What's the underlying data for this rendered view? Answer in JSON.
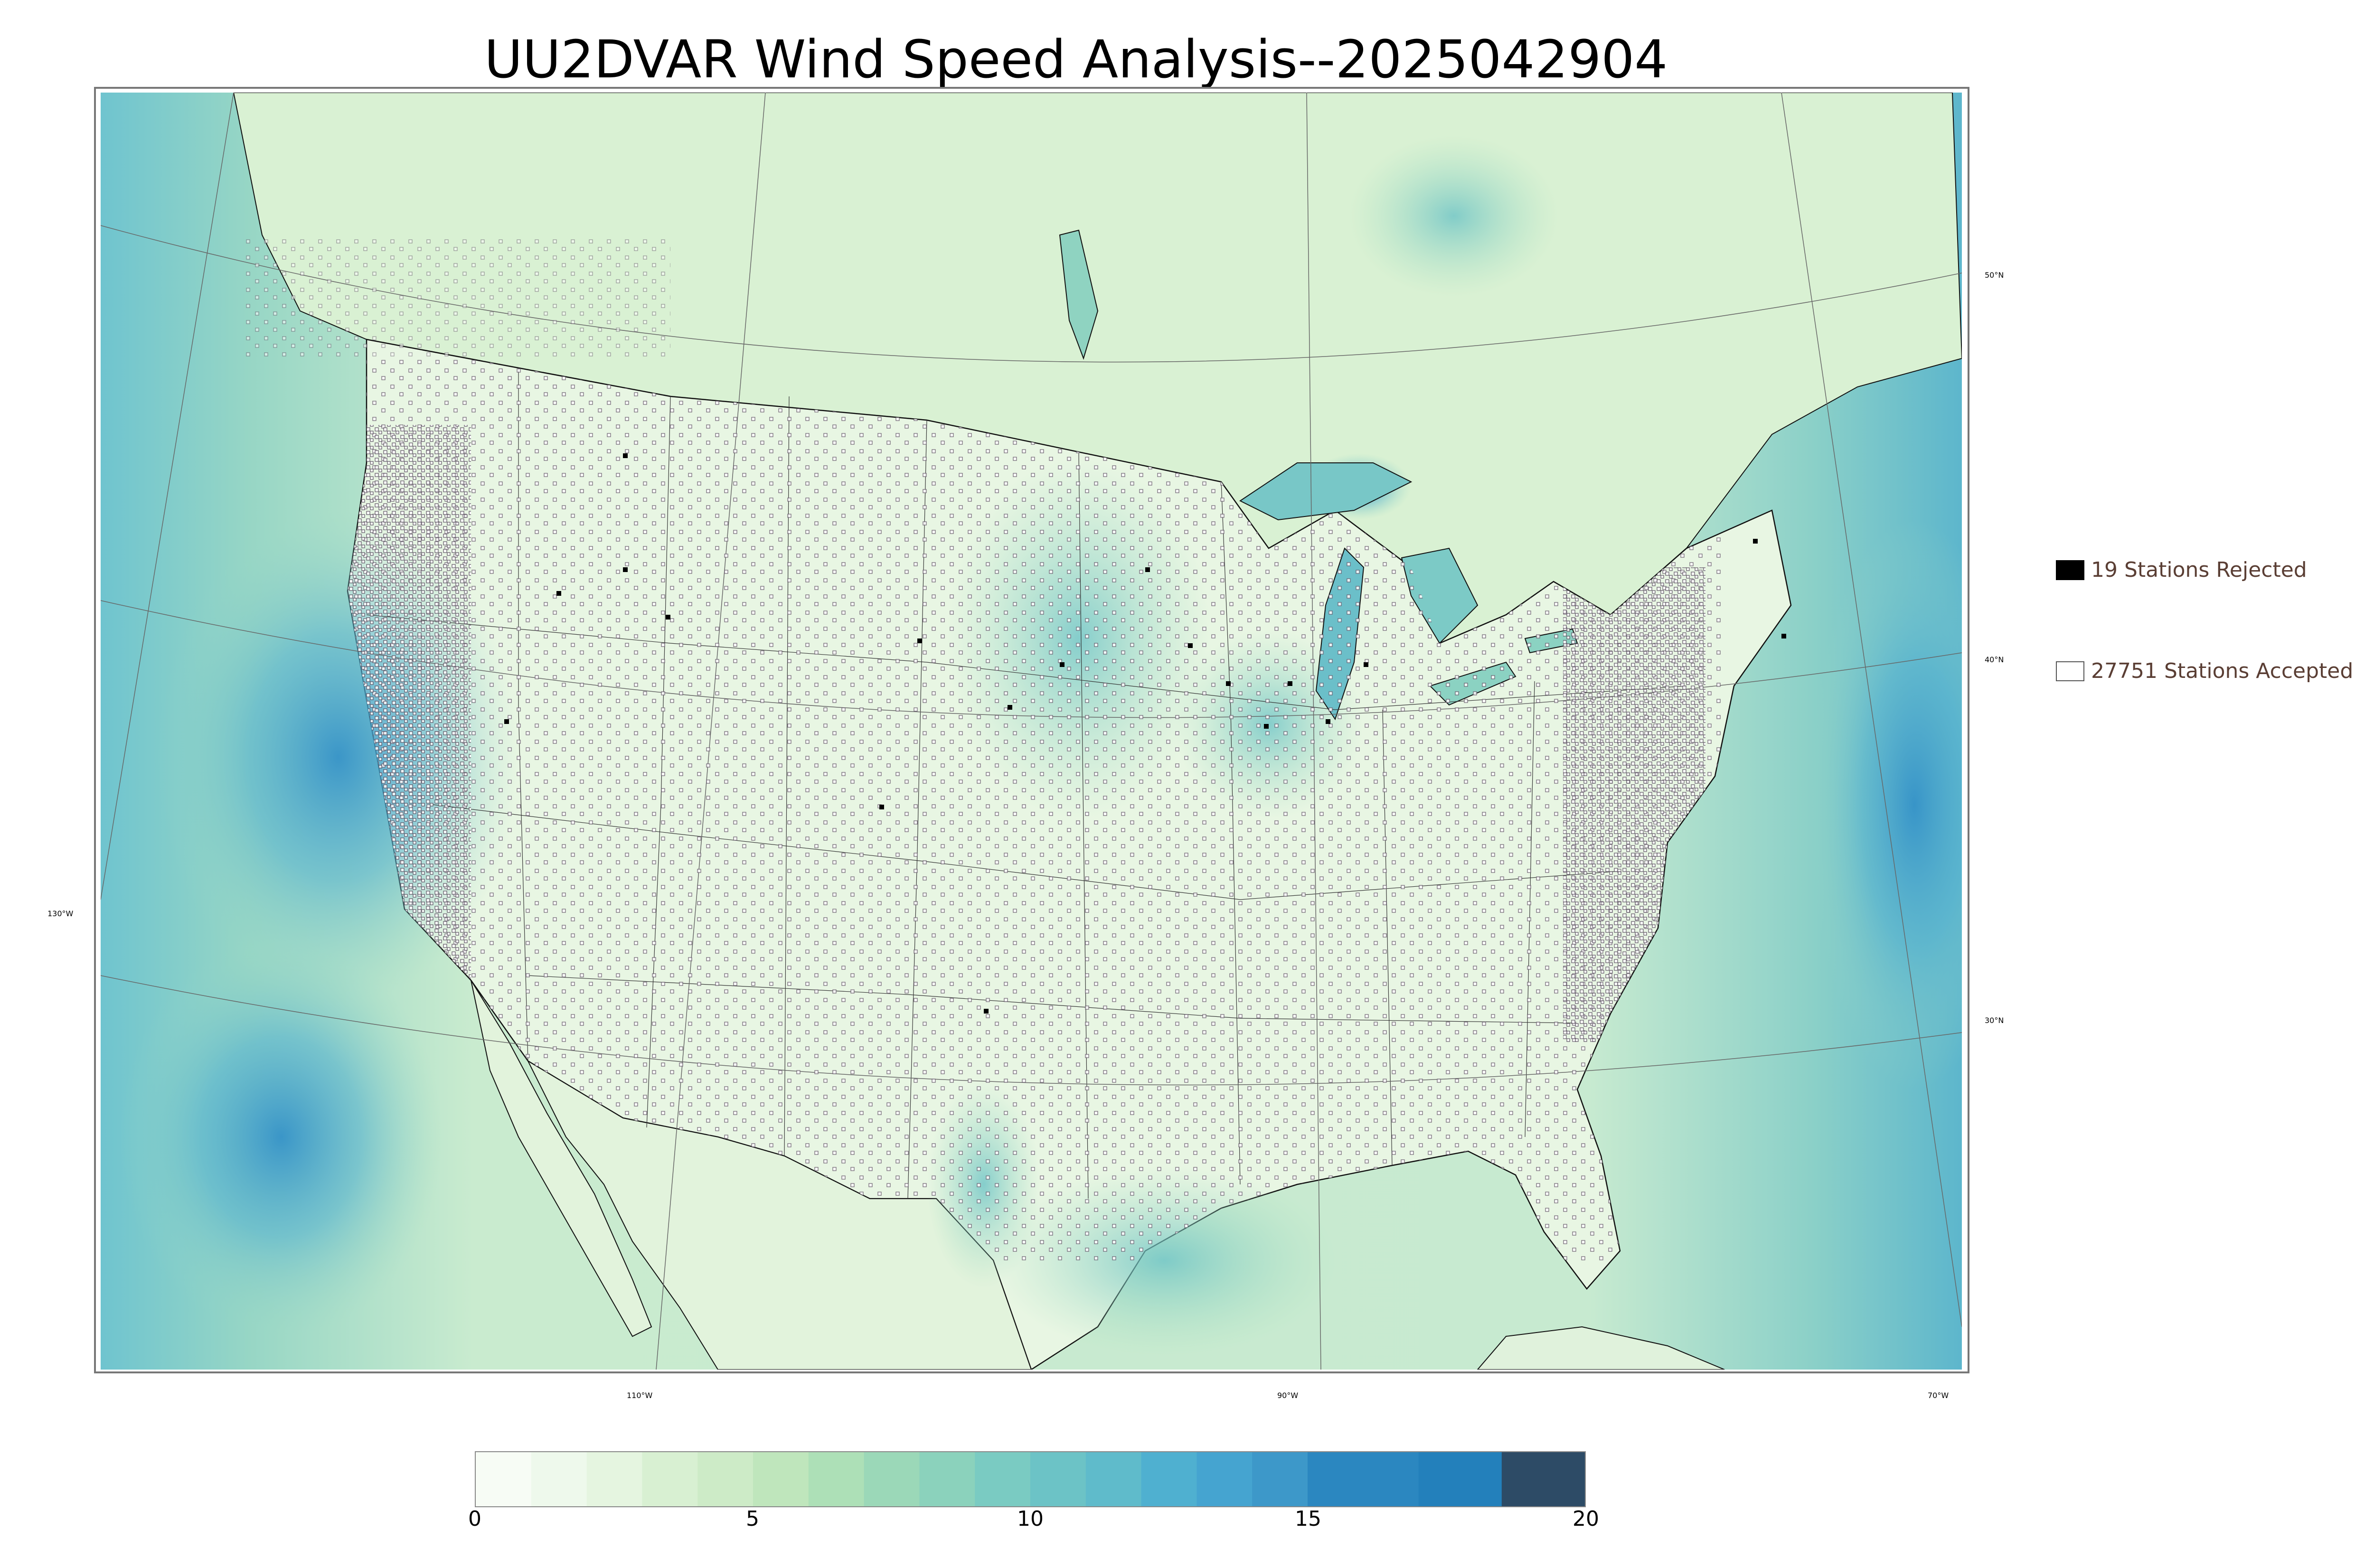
{
  "title": "UU2DVAR Wind Speed Analysis--2025042904",
  "legend": {
    "rejected": {
      "label": "19 Stations Rejected",
      "swatch_fill": "#000000",
      "swatch_border": "#000000"
    },
    "accepted": {
      "label": "27751 Stations Accepted",
      "swatch_fill": "#ffffff",
      "swatch_border": "#555555"
    }
  },
  "graticule_labels": {
    "lat_50": "50°N",
    "lat_40": "40°N",
    "lat_30": "30°N",
    "lon_130": "130°W",
    "lon_110": "110°W",
    "lon_90": "90°W",
    "lon_70": "70°W"
  },
  "colorbar": {
    "min": 0,
    "max": 20,
    "ticks": [
      {
        "value": 0,
        "label": "0"
      },
      {
        "value": 5,
        "label": "5"
      },
      {
        "value": 10,
        "label": "10"
      },
      {
        "value": 15,
        "label": "15"
      },
      {
        "value": 20,
        "label": "20"
      }
    ],
    "bands": [
      {
        "from": 0,
        "to": 1,
        "color": "#f7fcf5"
      },
      {
        "from": 1,
        "to": 2,
        "color": "#eef9ec"
      },
      {
        "from": 2,
        "to": 3,
        "color": "#e5f5e0"
      },
      {
        "from": 3,
        "to": 4,
        "color": "#d8f0d2"
      },
      {
        "from": 4,
        "to": 5,
        "color": "#cdebc7"
      },
      {
        "from": 5,
        "to": 6,
        "color": "#bfe6bc"
      },
      {
        "from": 6,
        "to": 7,
        "color": "#ade0b7"
      },
      {
        "from": 7,
        "to": 8,
        "color": "#9bd8b8"
      },
      {
        "from": 8,
        "to": 9,
        "color": "#8bd2bc"
      },
      {
        "from": 9,
        "to": 10,
        "color": "#7acbc2"
      },
      {
        "from": 10,
        "to": 11,
        "color": "#6cc3c6"
      },
      {
        "from": 11,
        "to": 12,
        "color": "#5fbbcb"
      },
      {
        "from": 12,
        "to": 13,
        "color": "#4fb0d0"
      },
      {
        "from": 13,
        "to": 14,
        "color": "#45a4d0"
      },
      {
        "from": 14,
        "to": 15,
        "color": "#3d98c9"
      },
      {
        "from": 15,
        "to": 17,
        "color": "#2b87c0"
      },
      {
        "from": 17,
        "to": 18.5,
        "color": "#2380bb"
      },
      {
        "from": 18.5,
        "to": 20,
        "color": "#2d4b66"
      }
    ]
  },
  "colors": {
    "land_base": "#e6f5e1",
    "ocean_base": "#a7dcc3",
    "strong_wind": "#3c9fd0",
    "boundary": "#111111",
    "graticule": "#666666"
  }
}
